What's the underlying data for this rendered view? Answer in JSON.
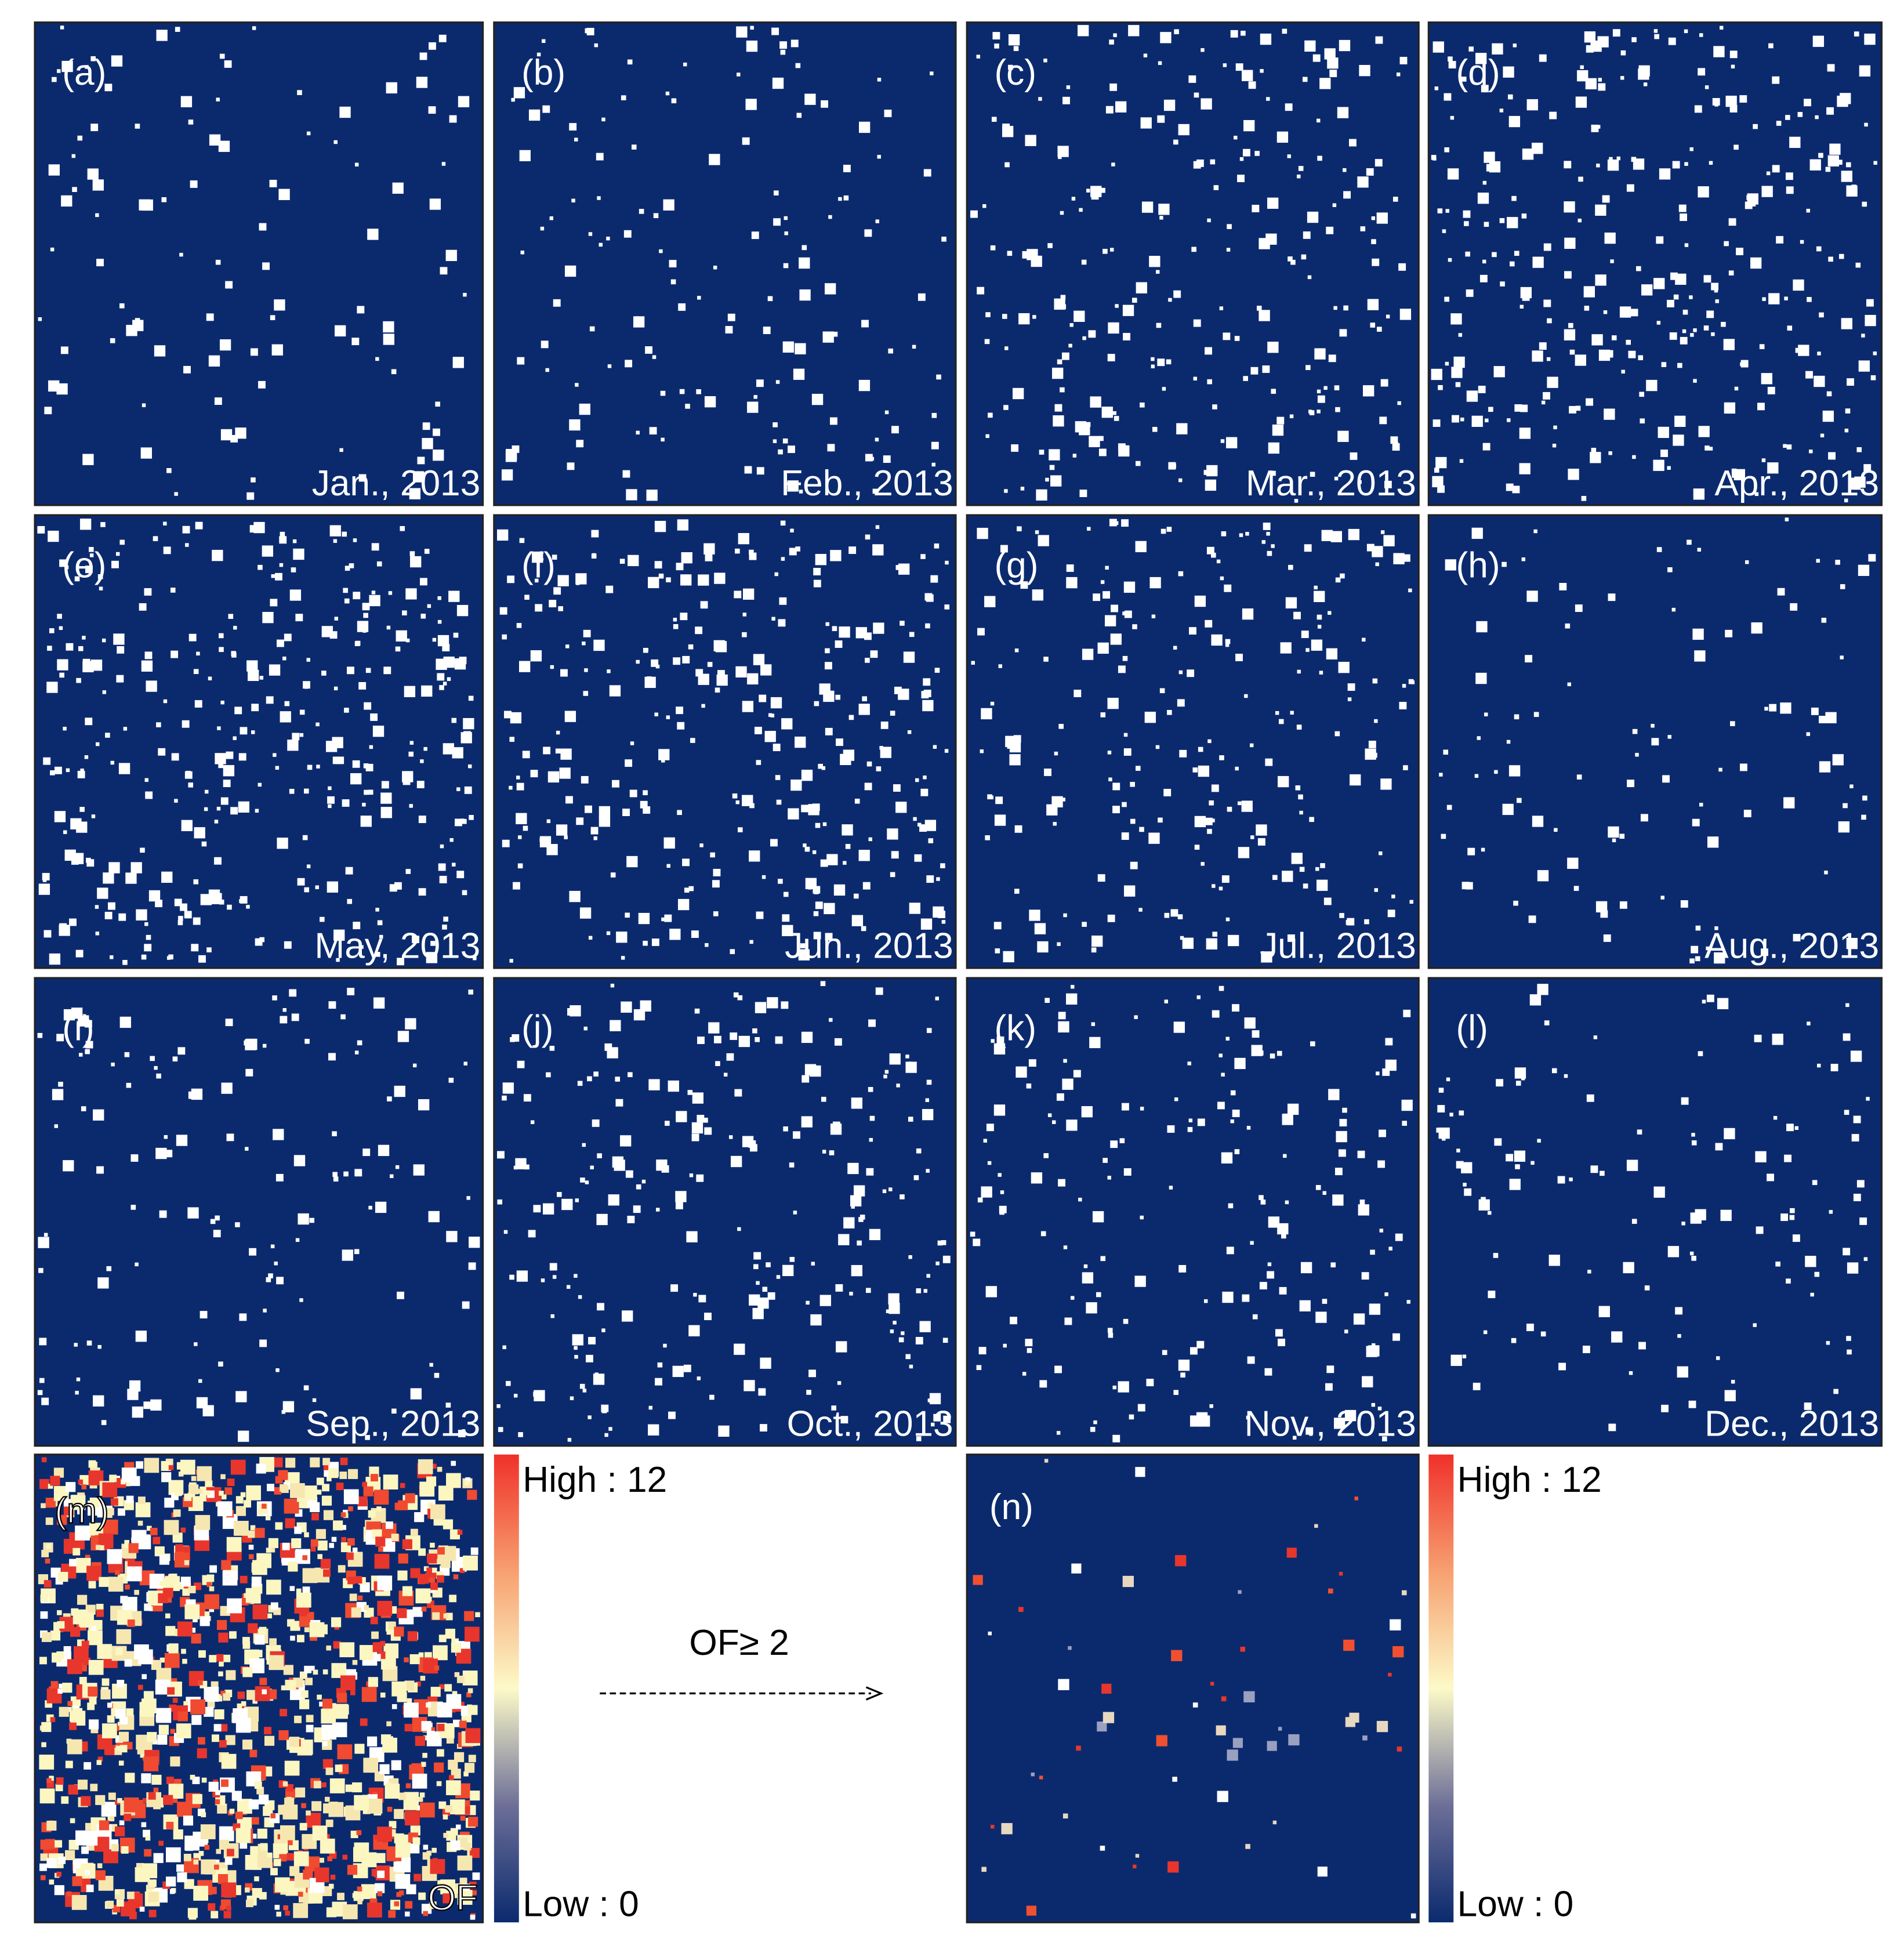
{
  "panels": [
    {
      "letter": "(a)",
      "label": "Jan., 2013"
    },
    {
      "letter": "(b)",
      "label": "Feb., 2013"
    },
    {
      "letter": "(c)",
      "label": "Mar., 2013"
    },
    {
      "letter": "(d)",
      "label": "Apr., 2013"
    },
    {
      "letter": "(e)",
      "label": "May, 2013"
    },
    {
      "letter": "(f)",
      "label": "Jun., 2013"
    },
    {
      "letter": "(g)",
      "label": "Jul., 2013"
    },
    {
      "letter": "(h)",
      "label": "Aug., 2013"
    },
    {
      "letter": "(i)",
      "label": "Sep., 2013"
    },
    {
      "letter": "(j)",
      "label": "Oct., 2013"
    },
    {
      "letter": "(k)",
      "label": "Nov., 2013"
    },
    {
      "letter": "(l)",
      "label": "Dec., 2013"
    }
  ],
  "panel_m": {
    "letter": "(m)",
    "label": "OF"
  },
  "legend_m": {
    "high": "High : 12",
    "low": "Low : 0"
  },
  "arrow": {
    "label": "OF≥ 2"
  },
  "panel_n": {
    "letter": "(n)"
  },
  "legend_n": {
    "high": "High : 12",
    "low": "Low : 0"
  }
}
